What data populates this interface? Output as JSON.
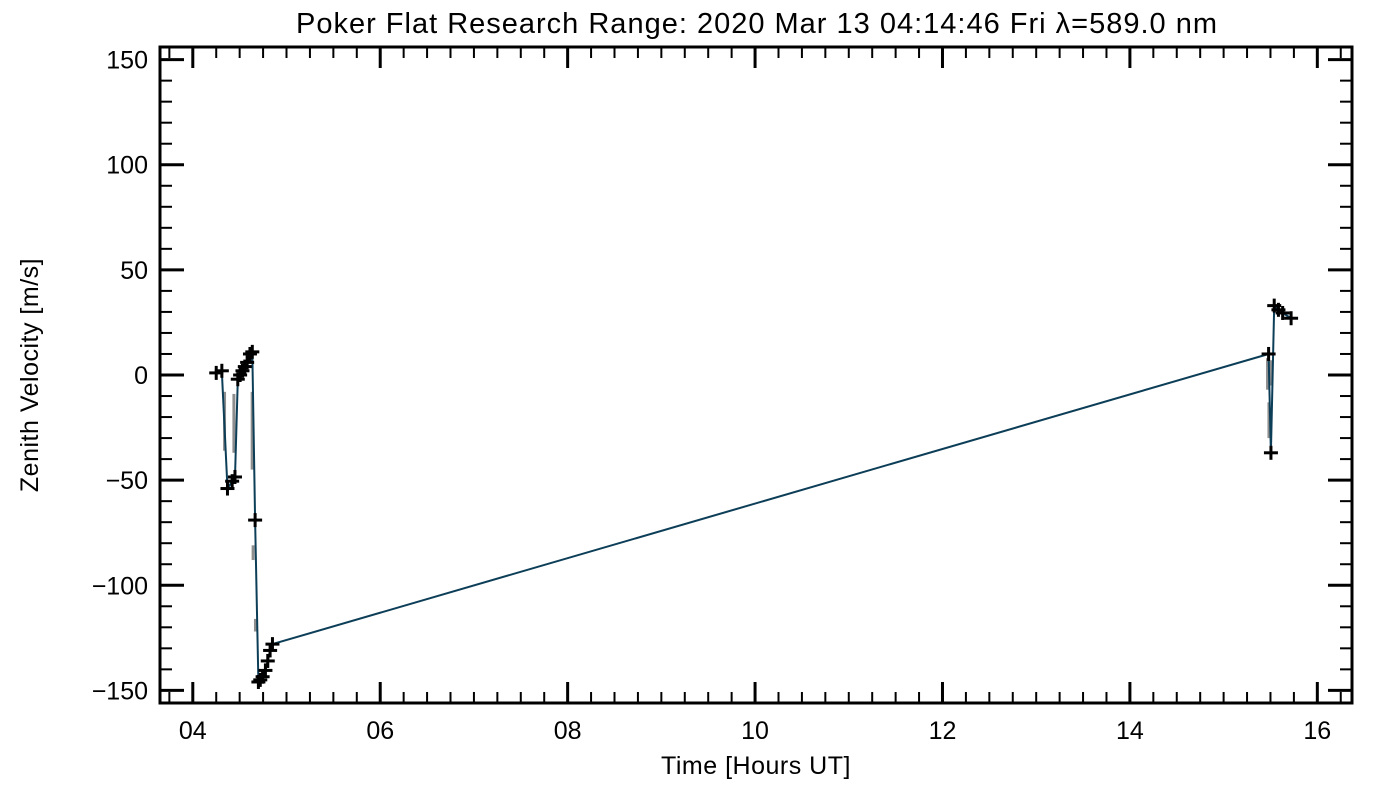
{
  "title": "Poker Flat Research Range: 2020 Mar 13 04:14:46 Fri λ=589.0 nm",
  "chart_data": {
    "type": "line",
    "title": "Poker Flat Research Range: 2020 Mar 13 04:14:46 Fri λ=589.0 nm",
    "xlabel": "Time [Hours UT]",
    "ylabel": "Zenith Velocity [m/s]",
    "xlim": [
      3.65,
      16.37
    ],
    "ylim": [
      -156,
      156
    ],
    "grid": false,
    "legend": "none",
    "x_major_ticks": [
      4,
      6,
      8,
      10,
      12,
      14,
      16
    ],
    "x_major_labels": [
      "04",
      "06",
      "08",
      "10",
      "12",
      "14",
      "16"
    ],
    "x_minor_step": 0.25,
    "y_major_ticks": [
      -150,
      -100,
      -50,
      0,
      50,
      100,
      150
    ],
    "y_major_labels": [
      "−150",
      "−100",
      "−50",
      "0",
      "50",
      "100",
      "150"
    ],
    "y_minor_step": 10,
    "line_color": "#0d3e58",
    "marker": "plus",
    "marker_color": "#000000",
    "error_bar_color": "#8e8e8e",
    "series": [
      {
        "name": "zenith-velocity",
        "points": [
          [
            4.25,
            1
          ],
          [
            4.31,
            2
          ],
          [
            4.37,
            -54
          ],
          [
            4.42,
            -50.5
          ],
          [
            4.45,
            -48.5
          ],
          [
            4.48,
            -2
          ],
          [
            4.505,
            0
          ],
          [
            4.53,
            2
          ],
          [
            4.555,
            4
          ],
          [
            4.58,
            6
          ],
          [
            4.61,
            10
          ],
          [
            4.635,
            11
          ],
          [
            4.665,
            -69
          ],
          [
            4.7,
            -146
          ],
          [
            4.72,
            -145
          ],
          [
            4.745,
            -143.5
          ],
          [
            4.775,
            -140.5
          ],
          [
            4.8,
            -136
          ],
          [
            4.825,
            -131
          ],
          [
            4.85,
            -128
          ],
          [
            15.48,
            10
          ],
          [
            15.505,
            -37
          ],
          [
            15.54,
            33
          ],
          [
            15.585,
            31
          ],
          [
            15.63,
            29.5
          ],
          [
            15.72,
            27
          ]
        ]
      }
    ],
    "error_bars": [
      {
        "x": 4.36,
        "y1": -8,
        "y2": -36
      },
      {
        "x": 4.46,
        "y1": -9,
        "y2": -37
      },
      {
        "x": 4.655,
        "y1": -8,
        "y2": -45
      },
      {
        "x": 4.665,
        "y1": -81,
        "y2": -88
      },
      {
        "x": 4.69,
        "y1": -116,
        "y2": -122
      },
      {
        "x": 15.49,
        "y1": 8,
        "y2": -7
      },
      {
        "x": 15.505,
        "y1": -13,
        "y2": -30
      },
      {
        "x": 15.525,
        "y1": 7,
        "y2": -5
      }
    ]
  }
}
